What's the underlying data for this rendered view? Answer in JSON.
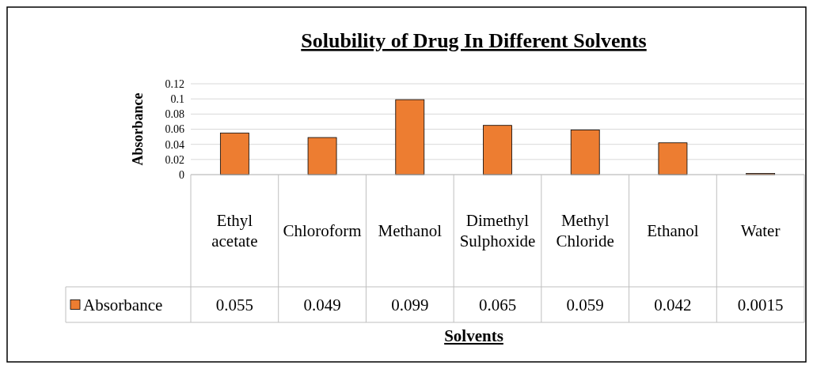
{
  "chart_data": {
    "type": "bar",
    "title": "Solubility of Drug In Different Solvents",
    "xlabel": "Solvents",
    "ylabel": "Absorbance",
    "categories": [
      "Ethyl acetate",
      "Chloroform",
      "Methanol",
      "Dimethyl Sulphoxide",
      "Methyl Chloride",
      "Ethanol",
      "Water"
    ],
    "series": [
      {
        "name": "Absorbance",
        "color": "#ed7d31",
        "values": [
          0.055,
          0.049,
          0.099,
          0.065,
          0.059,
          0.042,
          0.0015
        ]
      }
    ],
    "ylim": [
      0,
      0.12
    ],
    "yticks": [
      0,
      0.02,
      0.04,
      0.06,
      0.08,
      0.1,
      0.12
    ],
    "grid": "y",
    "data_labels": true,
    "legend": "bottom left"
  }
}
